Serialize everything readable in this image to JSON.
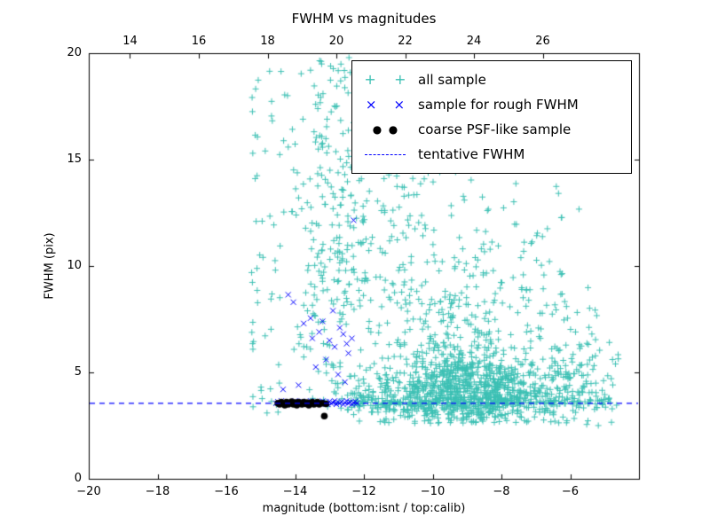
{
  "chart_data": {
    "type": "scatter",
    "title": "FWHM vs magnitudes",
    "axes": {
      "bottom": {
        "label": "magnitude (bottom:isnt / top:calib)",
        "lim": [
          -20,
          -4
        ],
        "ticks": [
          {
            "v": -20,
            "t": "−20"
          },
          {
            "v": -18,
            "t": "−18"
          },
          {
            "v": -16,
            "t": "−16"
          },
          {
            "v": -14,
            "t": "−14"
          },
          {
            "v": -12,
            "t": "−12"
          },
          {
            "v": -10,
            "t": "−10"
          },
          {
            "v": -8,
            "t": "−8"
          },
          {
            "v": -6,
            "t": "−6"
          }
        ]
      },
      "top": {
        "calib_offset": 32.8,
        "ticks": [
          {
            "v": -18.8,
            "t": "14"
          },
          {
            "v": -16.8,
            "t": "16"
          },
          {
            "v": -14.8,
            "t": "18"
          },
          {
            "v": -12.8,
            "t": "20"
          },
          {
            "v": -10.8,
            "t": "22"
          },
          {
            "v": -8.8,
            "t": "24"
          },
          {
            "v": -6.8,
            "t": "26"
          }
        ]
      },
      "left": {
        "label": "FWHM (pix)",
        "lim": [
          0,
          20
        ],
        "ticks": [
          {
            "v": 0,
            "t": "0"
          },
          {
            "v": 5,
            "t": "5"
          },
          {
            "v": 10,
            "t": "10"
          },
          {
            "v": 15,
            "t": "15"
          },
          {
            "v": 20,
            "t": "20"
          }
        ]
      }
    },
    "legend": [
      {
        "label": "all sample",
        "marker": "plus",
        "color": "#3cc0b4"
      },
      {
        "label": "sample for rough FWHM",
        "marker": "cross",
        "color": "#0000ff"
      },
      {
        "label": "coarse PSF-like sample",
        "marker": "dot",
        "color": "#000000"
      },
      {
        "label": "tentative FWHM",
        "marker": "dashed-line",
        "color": "#0000ff"
      }
    ],
    "tentative_fwhm": 3.55,
    "series": [
      {
        "name": "all sample",
        "marker": "plus",
        "color": "#3cc0b4",
        "seed": 1234,
        "clusters": [
          {
            "count": 950,
            "x": {
              "dist": "normal",
              "mean": -9.0,
              "sd": 1.5,
              "min": -12.5,
              "max": -4.7
            },
            "y": {
              "dist": "normal",
              "mean": 4.0,
              "sd": 0.9,
              "min": 2.6,
              "max": 7.5
            }
          },
          {
            "count": 320,
            "x": {
              "dist": "normal",
              "mean": -9.4,
              "sd": 1.6,
              "min": -12.6,
              "max": -5.0
            },
            "y": {
              "dist": "normal",
              "mean": 6.2,
              "sd": 2.2,
              "min": 3.0,
              "max": 13.5
            }
          },
          {
            "count": 190,
            "x": {
              "dist": "normal",
              "mean": -13.0,
              "sd": 0.55,
              "min": -14.4,
              "max": -11.9
            },
            "y": {
              "dist": "uniform",
              "min": 3.2,
              "max": 20.0
            }
          },
          {
            "count": 150,
            "x": {
              "dist": "normal",
              "mean": -11.2,
              "sd": 1.4,
              "min": -14.5,
              "max": -7.0
            },
            "y": {
              "dist": "normal",
              "mean": 11.5,
              "sd": 3.0,
              "min": 8.0,
              "max": 20.0
            }
          },
          {
            "count": 55,
            "x": {
              "dist": "uniform",
              "min": -15.3,
              "max": -14.3
            },
            "y": {
              "dist": "uniform",
              "min": 3.0,
              "max": 19.6
            }
          },
          {
            "count": 100,
            "x": {
              "dist": "uniform",
              "min": -6.6,
              "max": -4.6
            },
            "y": {
              "dist": "normal",
              "mean": 4.3,
              "sd": 1.6,
              "min": 2.5,
              "max": 9.5
            }
          },
          {
            "count": 160,
            "x": {
              "dist": "uniform",
              "min": -12.5,
              "max": -4.8
            },
            "y": {
              "dist": "normal",
              "mean": 3.55,
              "sd": 0.22,
              "min": 3.0,
              "max": 4.2
            }
          },
          {
            "count": 45,
            "x": {
              "dist": "uniform",
              "min": -8.6,
              "max": -5.4
            },
            "y": {
              "dist": "uniform",
              "min": 8.0,
              "max": 14.0
            }
          }
        ]
      },
      {
        "name": "sample for rough FWHM",
        "marker": "cross",
        "color": "#0000ff",
        "points": [
          [
            -14.55,
            3.55
          ],
          [
            -14.5,
            3.62
          ],
          [
            -14.45,
            3.5
          ],
          [
            -14.4,
            3.66
          ],
          [
            -14.34,
            3.55
          ],
          [
            -14.3,
            3.6
          ],
          [
            -14.24,
            3.49
          ],
          [
            -14.2,
            3.63
          ],
          [
            -14.15,
            3.55
          ],
          [
            -14.1,
            3.58
          ],
          [
            -14.04,
            3.5
          ],
          [
            -14.0,
            3.66
          ],
          [
            -13.95,
            3.55
          ],
          [
            -13.9,
            3.6
          ],
          [
            -13.85,
            3.51
          ],
          [
            -13.8,
            3.64
          ],
          [
            -13.75,
            3.57
          ],
          [
            -13.7,
            3.49
          ],
          [
            -13.65,
            3.6
          ],
          [
            -13.6,
            3.54
          ],
          [
            -13.55,
            3.66
          ],
          [
            -13.5,
            3.5
          ],
          [
            -13.45,
            3.58
          ],
          [
            -13.4,
            3.63
          ],
          [
            -13.35,
            3.54
          ],
          [
            -13.3,
            3.6
          ],
          [
            -13.25,
            3.51
          ],
          [
            -13.2,
            3.65
          ],
          [
            -13.15,
            3.55
          ],
          [
            -13.1,
            3.6
          ],
          [
            -13.05,
            3.5
          ],
          [
            -13.0,
            3.63
          ],
          [
            -12.95,
            3.55
          ],
          [
            -12.9,
            3.58
          ],
          [
            -12.85,
            3.66
          ],
          [
            -12.8,
            3.5
          ],
          [
            -12.75,
            3.6
          ],
          [
            -12.7,
            3.55
          ],
          [
            -12.65,
            3.62
          ],
          [
            -12.6,
            3.49
          ],
          [
            -12.55,
            3.58
          ],
          [
            -12.5,
            3.66
          ],
          [
            -12.45,
            3.55
          ],
          [
            -12.4,
            3.6
          ],
          [
            -12.35,
            3.5
          ],
          [
            -12.3,
            3.57
          ],
          [
            -12.25,
            3.64
          ],
          [
            -12.2,
            3.55
          ],
          [
            -14.2,
            8.65
          ],
          [
            -14.05,
            8.3
          ],
          [
            -13.75,
            7.3
          ],
          [
            -13.55,
            7.55
          ],
          [
            -13.5,
            6.6
          ],
          [
            -13.3,
            6.9
          ],
          [
            -13.2,
            7.4
          ],
          [
            -13.0,
            6.5
          ],
          [
            -12.9,
            7.9
          ],
          [
            -12.85,
            6.2
          ],
          [
            -12.7,
            7.1
          ],
          [
            -12.6,
            6.8
          ],
          [
            -12.5,
            6.35
          ],
          [
            -12.45,
            5.9
          ],
          [
            -12.35,
            6.6
          ],
          [
            -12.3,
            12.15
          ],
          [
            -13.1,
            5.6
          ],
          [
            -13.4,
            5.25
          ],
          [
            -12.75,
            4.9
          ],
          [
            -13.9,
            4.4
          ],
          [
            -12.55,
            4.55
          ],
          [
            -14.35,
            4.2
          ]
        ]
      },
      {
        "name": "coarse PSF-like sample",
        "marker": "dot",
        "color": "#000000",
        "points": [
          [
            -14.5,
            3.55
          ],
          [
            -14.45,
            3.5
          ],
          [
            -14.4,
            3.6
          ],
          [
            -14.35,
            3.55
          ],
          [
            -14.3,
            3.46
          ],
          [
            -14.25,
            3.6
          ],
          [
            -14.2,
            3.5
          ],
          [
            -14.15,
            3.56
          ],
          [
            -14.1,
            3.62
          ],
          [
            -14.05,
            3.5
          ],
          [
            -14.0,
            3.58
          ],
          [
            -13.95,
            3.46
          ],
          [
            -13.9,
            3.6
          ],
          [
            -13.85,
            3.55
          ],
          [
            -13.8,
            3.5
          ],
          [
            -13.75,
            3.6
          ],
          [
            -13.7,
            3.52
          ],
          [
            -13.65,
            3.58
          ],
          [
            -13.6,
            3.46
          ],
          [
            -13.55,
            3.55
          ],
          [
            -13.5,
            3.6
          ],
          [
            -13.45,
            3.5
          ],
          [
            -13.4,
            3.56
          ],
          [
            -13.35,
            3.6
          ],
          [
            -13.3,
            3.5
          ],
          [
            -13.2,
            3.55
          ],
          [
            -13.1,
            3.52
          ],
          [
            -13.15,
            2.95
          ]
        ]
      },
      {
        "name": "tentative FWHM",
        "type": "hline",
        "y": 3.55,
        "linestyle": "dashed",
        "color": "#0000ff"
      }
    ]
  }
}
